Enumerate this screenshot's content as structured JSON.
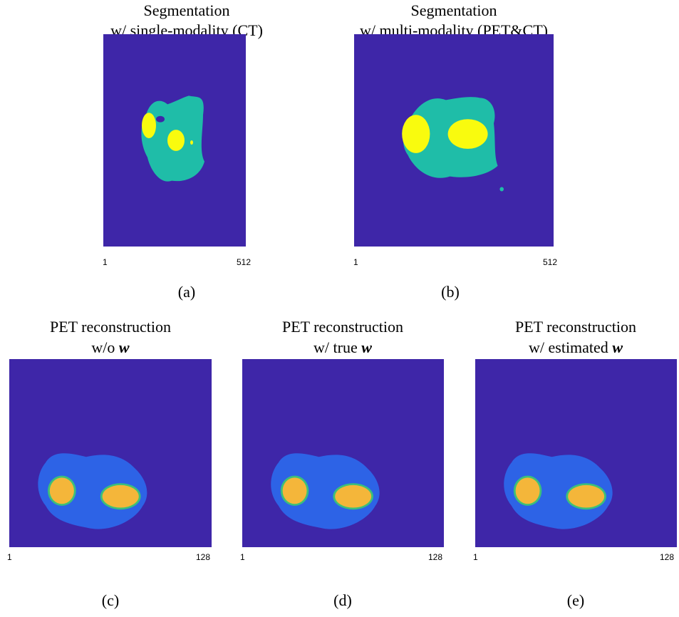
{
  "panels": [
    {
      "title_lines": [
        "Segmentation",
        "w/ single-modality (CT)"
      ],
      "xticks": [
        1,
        512
      ],
      "caption": "(a)"
    },
    {
      "title_lines": [
        "Segmentation",
        "w/ multi-modality (PET&CT)"
      ],
      "xticks": [
        1,
        512
      ],
      "caption": "(b)"
    },
    {
      "title_lines": [
        "PET reconstruction",
        "w/o"
      ],
      "symbol": "w",
      "xticks": [
        1,
        128
      ],
      "caption": "(c)"
    },
    {
      "title_lines": [
        "PET reconstruction",
        "w/ true"
      ],
      "symbol": "w",
      "xticks": [
        1,
        128
      ],
      "caption": "(d)"
    },
    {
      "title_lines": [
        "PET reconstruction",
        "w/ estimated"
      ],
      "symbol": "w",
      "xticks": [
        1,
        128
      ],
      "caption": "(e)"
    }
  ]
}
